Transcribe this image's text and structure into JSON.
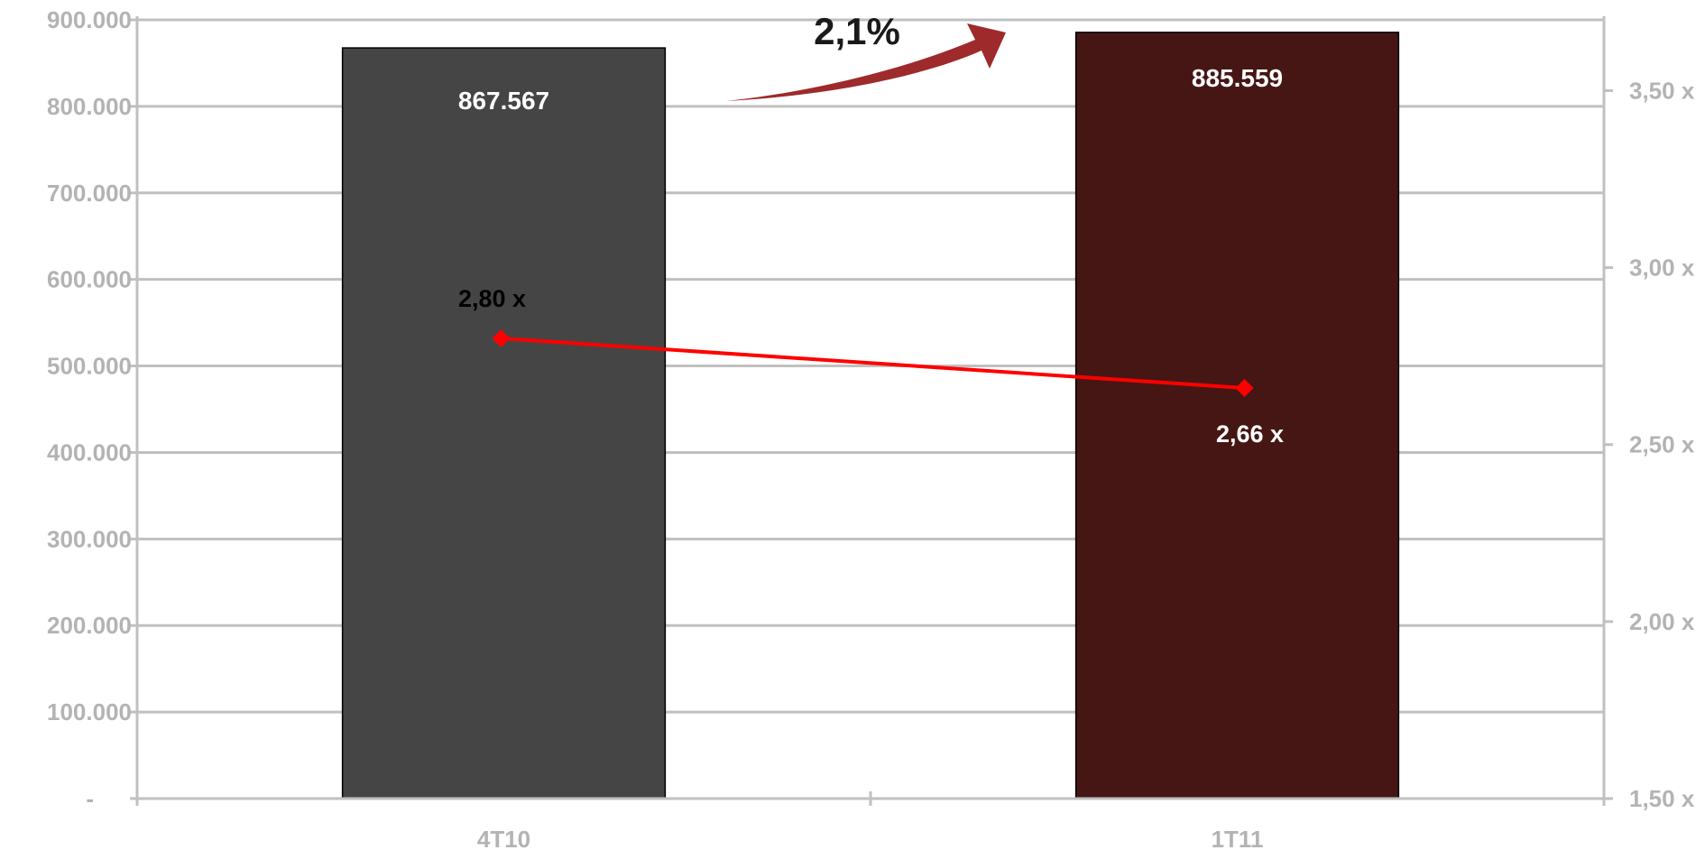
{
  "chart_data": {
    "type": "bar",
    "categories": [
      "4T10",
      "1T11"
    ],
    "series": [
      {
        "type": "bar",
        "axis": "left",
        "values": [
          867567,
          885559
        ],
        "value_labels": [
          "867.567",
          "885.559"
        ],
        "colors": [
          "#454545",
          "#461614"
        ]
      },
      {
        "type": "line",
        "axis": "right",
        "values": [
          2.8,
          2.66
        ],
        "value_labels": [
          "2,80 x",
          "2,66 x"
        ],
        "color": "#ff0000"
      }
    ],
    "y_left": {
      "ylim": [
        0,
        900000
      ],
      "tick_labels": [
        "-",
        "100.000",
        "200.000",
        "300.000",
        "400.000",
        "500.000",
        "600.000",
        "700.000",
        "800.000",
        "900.000"
      ]
    },
    "y_right": {
      "ylim": [
        1.5,
        3.7
      ],
      "ticks": [
        1.5,
        2.0,
        2.5,
        3.0,
        3.5
      ],
      "tick_labels": [
        "1,50 x",
        "2,00 x",
        "2,50 x",
        "3,00 x",
        "3,50 x"
      ]
    },
    "annotation": {
      "text": "2,1%",
      "color": "#9e2a2b"
    },
    "grid": true,
    "legend": "none",
    "colors": {
      "grid": "#c0c0c0",
      "tick_text": "#b3b3b3"
    }
  }
}
